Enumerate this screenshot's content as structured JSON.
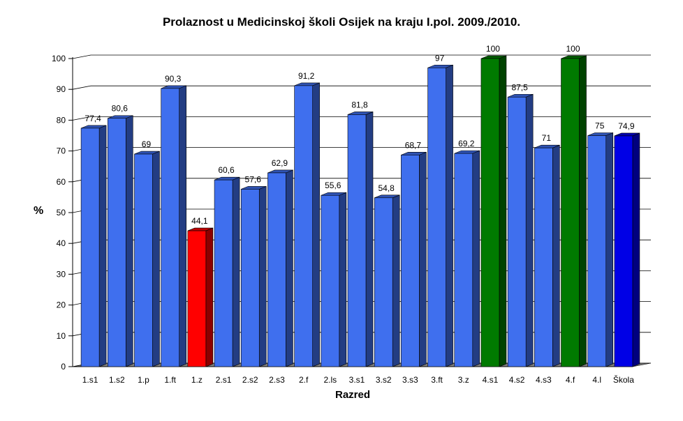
{
  "chart_data": {
    "type": "bar",
    "title": "Prolaznost u Medicinskoj školi Osijek na kraju I.pol. 2009./2010.",
    "xlabel": "Razred",
    "ylabel": "%",
    "ylim": [
      0,
      100
    ],
    "yticks": [
      "0",
      "10",
      "20",
      "30",
      "40",
      "50",
      "60",
      "70",
      "80",
      "90",
      "100"
    ],
    "grid": true,
    "categories": [
      "1.s1",
      "1.s2",
      "1.p",
      "1.ft",
      "1.z",
      "2.s1",
      "2.s2",
      "2.s3",
      "2.f",
      "2.ls",
      "3.s1",
      "3.s2",
      "3.s3",
      "3.ft",
      "3.z",
      "4.s1",
      "4.s2",
      "4.s3",
      "4.f",
      "4.l",
      "Škola"
    ],
    "values": [
      77.4,
      80.6,
      69,
      90.3,
      44.1,
      60.6,
      57.6,
      62.9,
      91.2,
      55.6,
      81.8,
      54.8,
      68.7,
      97,
      69.2,
      100,
      87.5,
      71,
      100,
      75,
      74.9
    ],
    "value_labels": [
      "77,4",
      "80,6",
      "69",
      "90,3",
      "44,1",
      "60,6",
      "57,6",
      "62,9",
      "91,2",
      "55,6",
      "81,8",
      "54,8",
      "68,7",
      "97",
      "69,2",
      "100",
      "87,5",
      "71",
      "100",
      "75",
      "74,9"
    ],
    "bar_colors": [
      "#3f6fee",
      "#3f6fee",
      "#3f6fee",
      "#3f6fee",
      "#ff0000",
      "#3f6fee",
      "#3f6fee",
      "#3f6fee",
      "#3f6fee",
      "#3f6fee",
      "#3f6fee",
      "#3f6fee",
      "#3f6fee",
      "#3f6fee",
      "#3f6fee",
      "#007a00",
      "#3f6fee",
      "#3f6fee",
      "#007a00",
      "#3f6fee",
      "#0000e6"
    ]
  }
}
